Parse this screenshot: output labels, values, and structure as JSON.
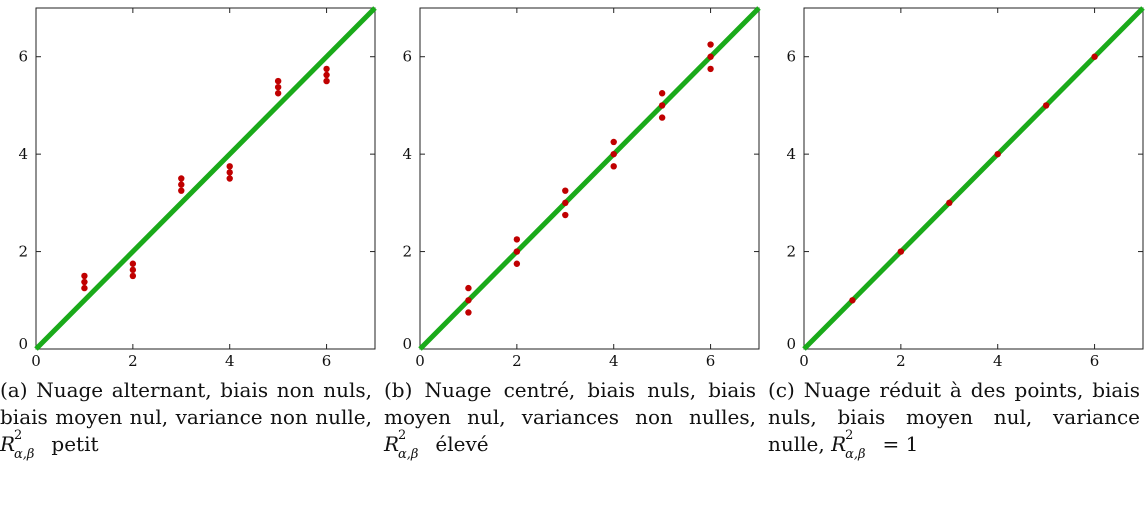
{
  "chart_data": [
    {
      "type": "scatter",
      "xlim": [
        0,
        7
      ],
      "ylim": [
        0,
        7
      ],
      "xticks": [
        "0",
        "2",
        "4",
        "6"
      ],
      "yticks": [
        "0",
        "2",
        "4",
        "6"
      ],
      "grid": false,
      "reference_line": {
        "x": [
          0,
          7
        ],
        "y": [
          0,
          7
        ],
        "color": "#1aaa1a"
      },
      "point_color": "#c00000",
      "points": [
        {
          "x": 1,
          "y": 1.25
        },
        {
          "x": 1,
          "y": 1.375
        },
        {
          "x": 1,
          "y": 1.5
        },
        {
          "x": 2,
          "y": 1.5
        },
        {
          "x": 2,
          "y": 1.625
        },
        {
          "x": 2,
          "y": 1.75
        },
        {
          "x": 3,
          "y": 3.25
        },
        {
          "x": 3,
          "y": 3.375
        },
        {
          "x": 3,
          "y": 3.5
        },
        {
          "x": 4,
          "y": 3.5
        },
        {
          "x": 4,
          "y": 3.625
        },
        {
          "x": 4,
          "y": 3.75
        },
        {
          "x": 5,
          "y": 5.25
        },
        {
          "x": 5,
          "y": 5.375
        },
        {
          "x": 5,
          "y": 5.5
        },
        {
          "x": 6,
          "y": 5.5
        },
        {
          "x": 6,
          "y": 5.625
        },
        {
          "x": 6,
          "y": 5.75
        }
      ],
      "caption_text": "(a) Nuage alternant, biais non nuls, biais moyen nul, variance non nulle,",
      "caption_tail": "petit"
    },
    {
      "type": "scatter",
      "xlim": [
        0,
        7
      ],
      "ylim": [
        0,
        7
      ],
      "xticks": [
        "0",
        "2",
        "4",
        "6"
      ],
      "yticks": [
        "0",
        "2",
        "4",
        "6"
      ],
      "grid": false,
      "reference_line": {
        "x": [
          0,
          7
        ],
        "y": [
          0,
          7
        ],
        "color": "#1aaa1a"
      },
      "point_color": "#c00000",
      "points": [
        {
          "x": 1,
          "y": 0.75
        },
        {
          "x": 1,
          "y": 1.0
        },
        {
          "x": 1,
          "y": 1.25
        },
        {
          "x": 2,
          "y": 1.75
        },
        {
          "x": 2,
          "y": 2.0
        },
        {
          "x": 2,
          "y": 2.25
        },
        {
          "x": 3,
          "y": 2.75
        },
        {
          "x": 3,
          "y": 3.0
        },
        {
          "x": 3,
          "y": 3.25
        },
        {
          "x": 4,
          "y": 3.75
        },
        {
          "x": 4,
          "y": 4.0
        },
        {
          "x": 4,
          "y": 4.25
        },
        {
          "x": 5,
          "y": 4.75
        },
        {
          "x": 5,
          "y": 5.0
        },
        {
          "x": 5,
          "y": 5.25
        },
        {
          "x": 6,
          "y": 5.75
        },
        {
          "x": 6,
          "y": 6.0
        },
        {
          "x": 6,
          "y": 6.25
        }
      ],
      "caption_text": "(b) Nuage centré, biais nuls, biais moyen nul, variances non nulles,",
      "caption_tail": "élevé"
    },
    {
      "type": "scatter",
      "xlim": [
        0,
        7
      ],
      "ylim": [
        0,
        7
      ],
      "xticks": [
        "0",
        "2",
        "4",
        "6"
      ],
      "yticks": [
        "0",
        "2",
        "4",
        "6"
      ],
      "grid": false,
      "reference_line": {
        "x": [
          0,
          7
        ],
        "y": [
          0,
          7
        ],
        "color": "#1aaa1a"
      },
      "point_color": "#c00000",
      "points": [
        {
          "x": 1,
          "y": 1
        },
        {
          "x": 2,
          "y": 2
        },
        {
          "x": 3,
          "y": 3
        },
        {
          "x": 4,
          "y": 4
        },
        {
          "x": 5,
          "y": 5
        },
        {
          "x": 6,
          "y": 6
        }
      ],
      "caption_text": "(c) Nuage réduit à des points, biais nuls, biais moyen nul, variance nulle,",
      "caption_tail": "= 1"
    }
  ],
  "math": {
    "r": "R",
    "sup": "2",
    "sub": "α,β"
  }
}
